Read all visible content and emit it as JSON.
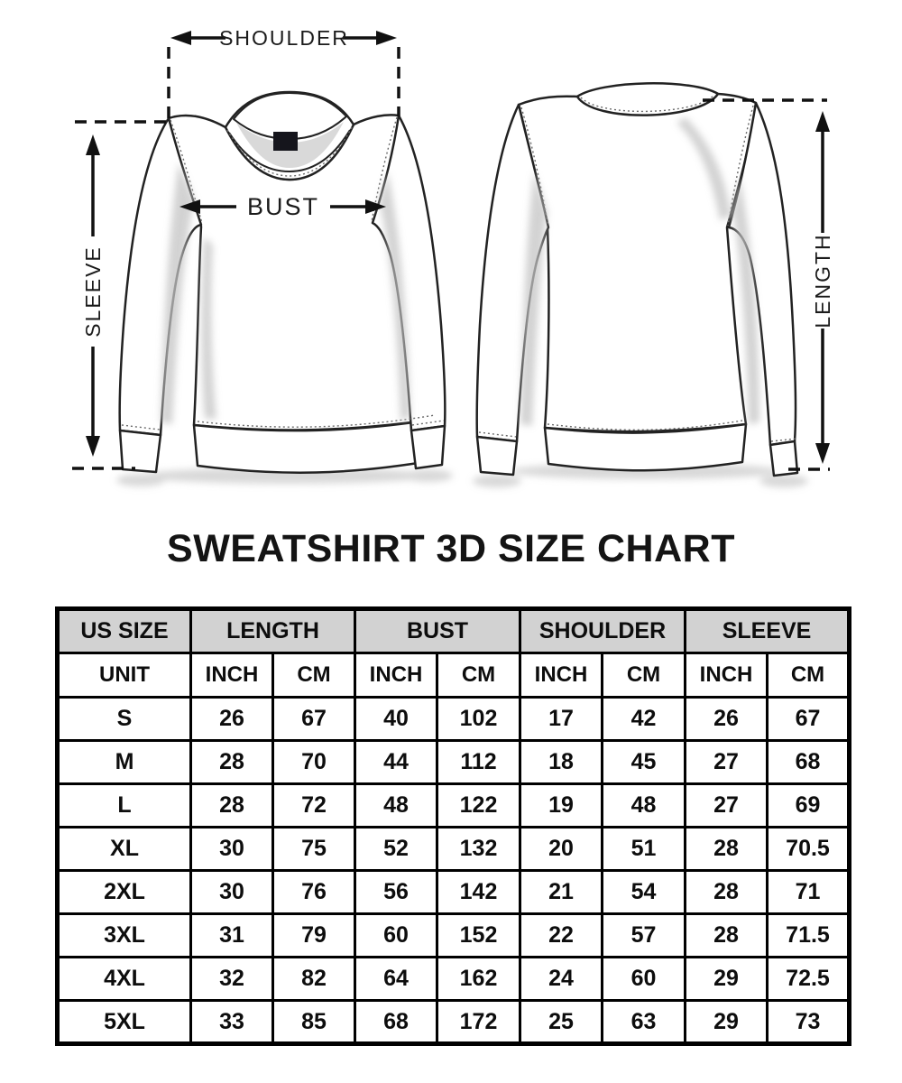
{
  "diagram": {
    "shoulder_label": "SHOULDER",
    "bust_label": "BUST",
    "sleeve_label": "SLEEVE",
    "length_label": "LENGTH"
  },
  "chart_data": {
    "type": "table",
    "title": "SWEATSHIRT 3D SIZE CHART",
    "header": {
      "us_size": "US SIZE",
      "groups": [
        "LENGTH",
        "BUST",
        "SHOULDER",
        "SLEEVE"
      ]
    },
    "unit_row": {
      "label": "UNIT",
      "units": [
        "INCH",
        "CM",
        "INCH",
        "CM",
        "INCH",
        "CM",
        "INCH",
        "CM"
      ]
    },
    "rows": [
      {
        "size": "S",
        "values": [
          "26",
          "67",
          "40",
          "102",
          "17",
          "42",
          "26",
          "67"
        ]
      },
      {
        "size": "M",
        "values": [
          "28",
          "70",
          "44",
          "112",
          "18",
          "45",
          "27",
          "68"
        ]
      },
      {
        "size": "L",
        "values": [
          "28",
          "72",
          "48",
          "122",
          "19",
          "48",
          "27",
          "69"
        ]
      },
      {
        "size": "XL",
        "values": [
          "30",
          "75",
          "52",
          "132",
          "20",
          "51",
          "28",
          "70.5"
        ]
      },
      {
        "size": "2XL",
        "values": [
          "30",
          "76",
          "56",
          "142",
          "21",
          "54",
          "28",
          "71"
        ]
      },
      {
        "size": "3XL",
        "values": [
          "31",
          "79",
          "60",
          "152",
          "22",
          "57",
          "28",
          "71.5"
        ]
      },
      {
        "size": "4XL",
        "values": [
          "32",
          "82",
          "64",
          "162",
          "24",
          "60",
          "29",
          "72.5"
        ]
      },
      {
        "size": "5XL",
        "values": [
          "33",
          "85",
          "68",
          "172",
          "25",
          "63",
          "29",
          "73"
        ]
      }
    ]
  },
  "colors": {
    "header_bg": "#d2d2d2",
    "border": "#000000",
    "outline": "#222222",
    "shade": "#c4c4c4",
    "label_patch": "#15151c"
  }
}
